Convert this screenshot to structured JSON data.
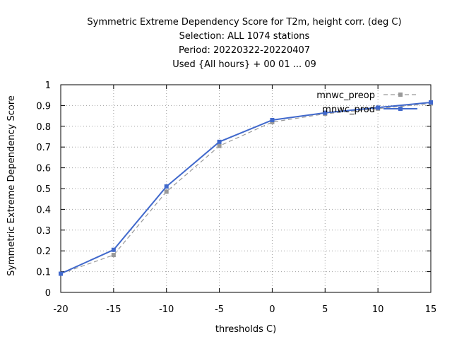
{
  "chart_data": {
    "type": "line",
    "title_lines": [
      "Symmetric Extreme Dependency Score  for T2m, height corr. (deg C)",
      "Selection: ALL    1074 stations",
      "Period: 20220322-20220407",
      "Used {All hours} + 00 01 ... 09"
    ],
    "xlabel": "thresholds C)",
    "ylabel": "Symmetric Extreme Dependency Score",
    "xlim": [
      -20,
      15
    ],
    "ylim": [
      0,
      1
    ],
    "xticks": [
      -20,
      -15,
      -10,
      -5,
      0,
      5,
      10,
      15
    ],
    "yticks": [
      0,
      0.1,
      0.2,
      0.3,
      0.4,
      0.5,
      0.6,
      0.7,
      0.8,
      0.9,
      1
    ],
    "ytick_labels": [
      "0",
      "0.1",
      "0.2",
      "0.3",
      "0.4",
      "0.5",
      "0.6",
      "0.7",
      "0.8",
      "0.9",
      "1"
    ],
    "grid": true,
    "legend_position": "top-right",
    "x": [
      -20,
      -15,
      -10,
      -5,
      0,
      5,
      10,
      15
    ],
    "series": [
      {
        "name": "mnwc_preop",
        "values": [
          0.09,
          0.18,
          0.485,
          0.705,
          0.82,
          0.86,
          0.885,
          0.91
        ],
        "color": "#999999",
        "dashed": true
      },
      {
        "name": "mnwc_prod",
        "values": [
          0.09,
          0.205,
          0.51,
          0.725,
          0.83,
          0.865,
          0.89,
          0.915
        ],
        "color": "#4169cc",
        "dashed": false
      }
    ]
  }
}
